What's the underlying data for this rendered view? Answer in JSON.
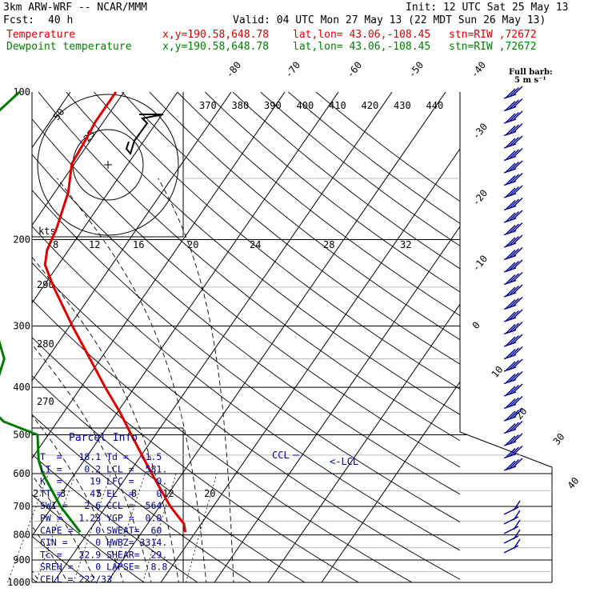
{
  "header": {
    "model": "3km ARW-WRF -- NCAR/MMM",
    "init": "Init: 12 UTC Sat 25 May 13",
    "fcst_label": "Fcst:",
    "fcst_value": "40 h",
    "valid": "Valid: 04 UTC Mon 27 May 13 (22 MDT Sun 26 May 13)",
    "temp_line": {
      "label": "Temperature",
      "xy": "x,y=190.58,648.78",
      "latlon": "lat,lon= 43.06,-108.45",
      "stn": "stn=RIW ,72672"
    },
    "dew_line": {
      "label": "Dewpoint temperature",
      "xy": "x,y=190.58,648.78",
      "latlon": "lat,lon= 43.06,-108.45",
      "stn": "stn=RIW ,72672"
    }
  },
  "colors": {
    "temperature": "#e00000",
    "dewpoint": "#007a00",
    "parcel_text": "#00008b",
    "grid": "#000000"
  },
  "pressure_labels": [
    "100",
    "200",
    "300",
    "400",
    "500",
    "600",
    "700",
    "800",
    "900",
    "1000"
  ],
  "isotherm_labels": [
    "-80",
    "-70",
    "-60",
    "-50",
    "-40",
    "-30",
    "-20",
    "-10",
    "0",
    "10",
    "20",
    "30",
    "40"
  ],
  "theta_e_labels": [
    "370",
    "380",
    "390",
    "400",
    "410",
    "420",
    "430",
    "440"
  ],
  "dry_adiabat_labels": [
    "290",
    "280",
    "270"
  ],
  "mixing_ratio_labels": [
    "2",
    "3",
    "5",
    "8",
    "12",
    "20"
  ],
  "hodograph": {
    "kts_label": "kts",
    "ring_labels": [
      "25",
      "50"
    ],
    "axis_labels": [
      "8",
      "12",
      "16",
      "20",
      "24",
      "28",
      "32"
    ]
  },
  "wind_note": {
    "line1": "Full barb:",
    "line2": "5 m s⁻¹"
  },
  "annotations": {
    "ccl": "CCL",
    "lcl": "<-LCL"
  },
  "parcel_info": {
    "title": "Parcel Info",
    "rows": [
      "T  =   18.1 Td =  -1.5",
      "LI =    0.2 LCL =  581.",
      "K  =     19 LFC =    0.",
      "TT =     47 EL  =    0.",
      "SWI =   2.6 CCL =  564.",
      "PW =   1.23 YGP =  0.0",
      "CAPE =    0 SWEAT=  60",
      "CIN =     0 HWBZ= 3314.",
      "Tc =   22.9 SHEAR=  29.",
      "SREH =    0 LAPSE=  8.8",
      "CELL = 222/33"
    ]
  },
  "chart_data": {
    "type": "line",
    "title": "Skew-T log-P sounding",
    "pressure_range_hPa": [
      1000,
      100
    ],
    "series": [
      {
        "name": "Temperature",
        "x_label": "°C",
        "points": [
          {
            "p": 790,
            "t": 18.1
          },
          {
            "p": 760,
            "t": 16.8
          },
          {
            "p": 700,
            "t": 12.0
          },
          {
            "p": 650,
            "t": 8.3
          },
          {
            "p": 600,
            "t": 4.3
          },
          {
            "p": 564,
            "t": 1.3
          },
          {
            "p": 500,
            "t": -4.5
          },
          {
            "p": 450,
            "t": -9.5
          },
          {
            "p": 400,
            "t": -15.5
          },
          {
            "p": 350,
            "t": -22.0
          },
          {
            "p": 300,
            "t": -29.5
          },
          {
            "p": 250,
            "t": -38.0
          },
          {
            "p": 225,
            "t": -42.5
          },
          {
            "p": 210,
            "t": -44.0
          },
          {
            "p": 190,
            "t": -45.0
          },
          {
            "p": 160,
            "t": -47.5
          },
          {
            "p": 140,
            "t": -50.5
          },
          {
            "p": 125,
            "t": -51.0
          },
          {
            "p": 115,
            "t": -51.5
          },
          {
            "p": 100,
            "t": -51.5
          }
        ]
      },
      {
        "name": "Dewpoint temperature",
        "x_label": "°C",
        "points": [
          {
            "p": 790,
            "t": -1.5
          },
          {
            "p": 700,
            "t": -8.5
          },
          {
            "p": 600,
            "t": -16.0
          },
          {
            "p": 564,
            "t": -18.5
          },
          {
            "p": 500,
            "t": -22.0
          },
          {
            "p": 470,
            "t": -30.0
          },
          {
            "p": 430,
            "t": -36.0
          },
          {
            "p": 400,
            "t": -36.0
          },
          {
            "p": 350,
            "t": -38.0
          },
          {
            "p": 300,
            "t": -44.0
          },
          {
            "p": 260,
            "t": -52.5
          },
          {
            "p": 220,
            "t": -57.5
          },
          {
            "p": 200,
            "t": -62.0
          },
          {
            "p": 150,
            "t": -72.5
          },
          {
            "p": 125,
            "t": -73.0
          },
          {
            "p": 100,
            "t": -69.5
          }
        ]
      }
    ]
  }
}
